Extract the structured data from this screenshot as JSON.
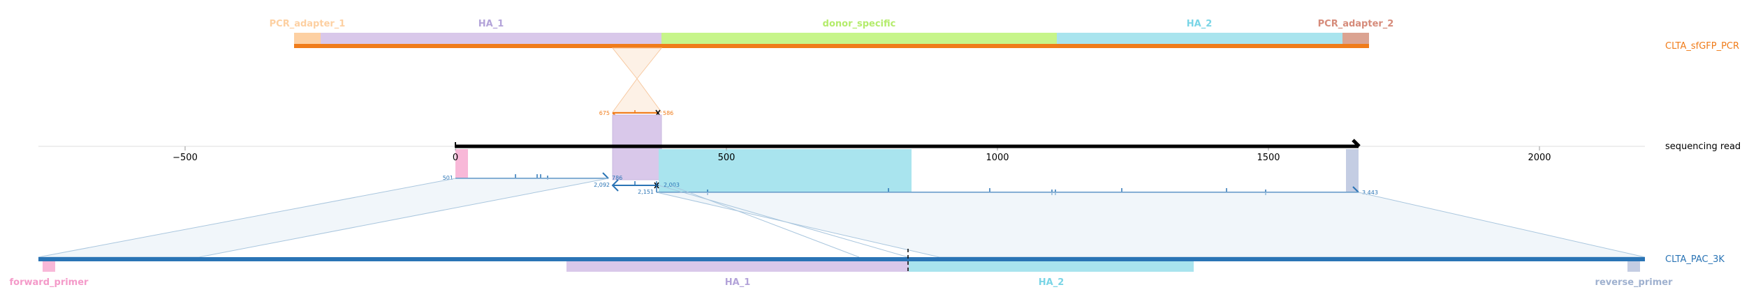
{
  "rows": {
    "top_name": "CLTA_sfGFP_PCR",
    "read_name": "sequencing read",
    "bottom_name": "CLTA_PAC_3K"
  },
  "top_features": [
    {
      "label": "PCR_adapter_1",
      "color": "#fdd0a2",
      "text_color": "#fdd0a2"
    },
    {
      "label": "HA_1",
      "color": "#d9c8ea",
      "text_color": "#b3a3d9"
    },
    {
      "label": "donor_specific",
      "color": "#c7f58a",
      "text_color": "#b4ec6c"
    },
    {
      "label": "HA_2",
      "color": "#a9e4ee",
      "text_color": "#7ad5e6"
    },
    {
      "label": "PCR_adapter_2",
      "color": "#dba391",
      "text_color": "#d68b7a"
    }
  ],
  "bottom_features": [
    {
      "label": "forward_primer",
      "color": "#f8b8d8",
      "text_color": "#f49ac9"
    },
    {
      "label": "HA_1",
      "color": "#d9c8ea",
      "text_color": "#b3a3d9"
    },
    {
      "label": "HA_2",
      "color": "#a9e4ee",
      "text_color": "#7ad5e6"
    },
    {
      "label": "reverse_primer",
      "color": "#c4cde3",
      "text_color": "#9fb1cf"
    }
  ],
  "axis": {
    "tick_labels": [
      "−500",
      "0",
      "500",
      "1000",
      "1500",
      "2000"
    ]
  },
  "alignment_labels": {
    "top_left": "675",
    "top_right": "586",
    "a1_left": "501",
    "a1_right": "786",
    "a2_left": "2,092",
    "a2_right": "2,003",
    "a3_left": "2,151",
    "a3_right": "3,443"
  },
  "colors": {
    "orange": "#f07c1a",
    "blue": "#2a74b5",
    "read": "#000000"
  }
}
